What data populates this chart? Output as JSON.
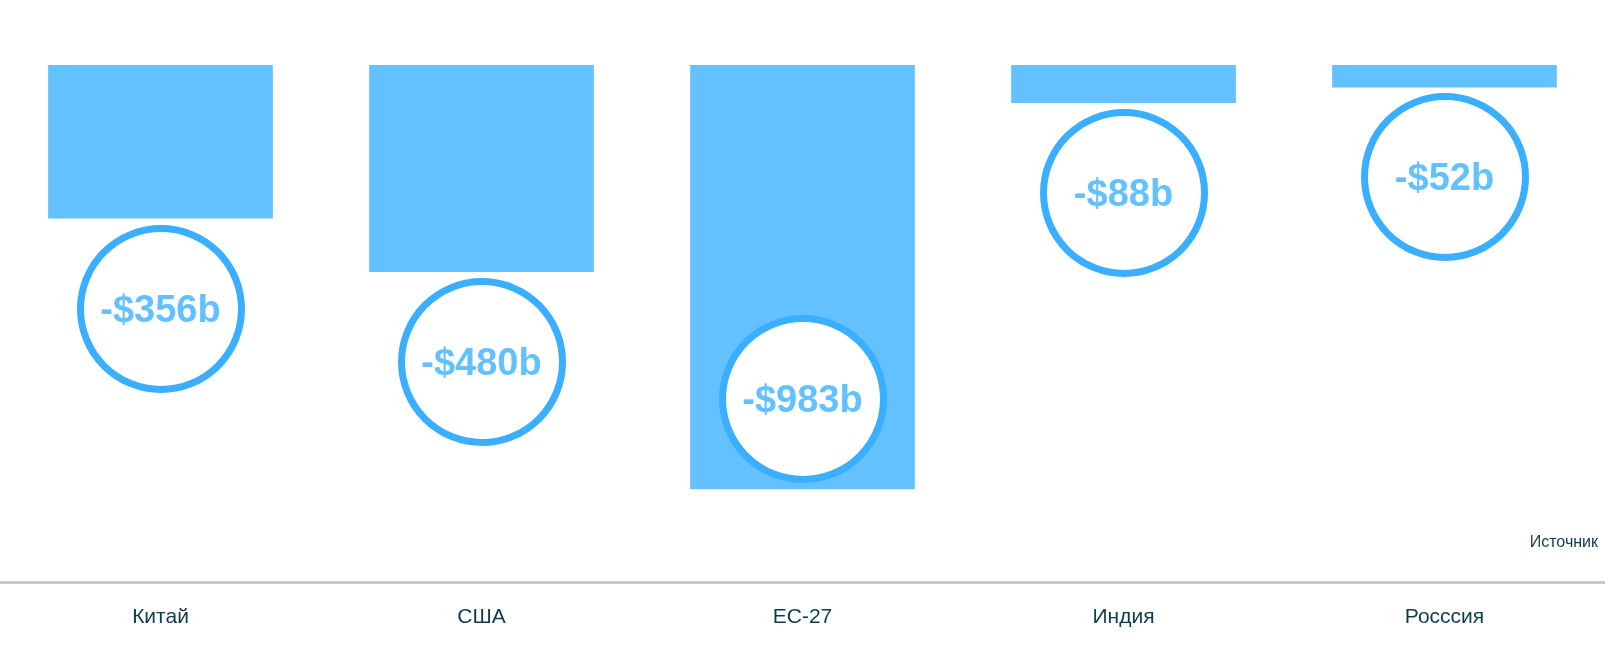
{
  "chart_data": {
    "type": "bar",
    "categories": [
      "Китай",
      "США",
      "ЕС-27",
      "Индия",
      "Росссия"
    ],
    "values": [
      -356,
      -480,
      -983,
      -88,
      -52
    ],
    "value_labels": [
      "-$356b",
      "-$480b",
      "-$983b",
      "-$88b",
      "-$52b"
    ],
    "color": "#64c1ff",
    "ylim": [
      -1200,
      0
    ],
    "grid": false,
    "legend": false,
    "annotations": [
      "Источник"
    ]
  }
}
